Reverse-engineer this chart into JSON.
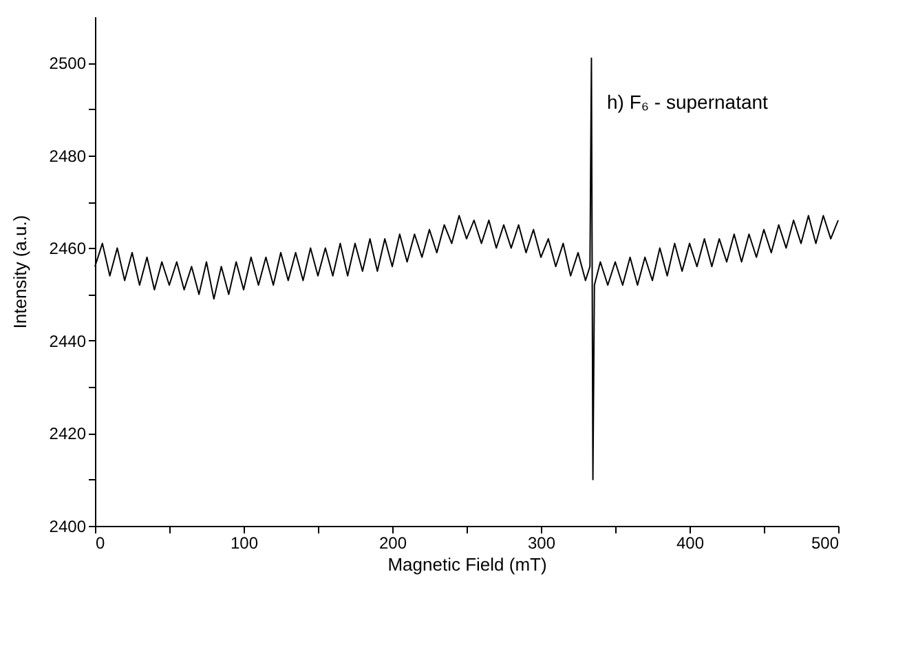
{
  "chart_data": {
    "type": "line",
    "xlabel": "Magnetic Field (mT)",
    "ylabel": "Intensity (a.u.)",
    "annotations": [
      "h) F₆ - supernatant"
    ],
    "xlim": [
      0,
      500
    ],
    "ylim": [
      2400,
      2510
    ],
    "xticks": [
      0,
      {
        "value": 50,
        "label": null
      },
      100,
      {
        "value": 150,
        "label": null
      },
      200,
      {
        "value": 250,
        "label": null
      },
      300,
      {
        "value": 350,
        "label": null
      },
      400,
      {
        "value": 450,
        "label": null
      },
      500
    ],
    "yticks": [
      2400,
      {
        "value": 2410,
        "label": null
      },
      2420,
      {
        "value": 2430,
        "label": null
      },
      2440,
      {
        "value": 2450,
        "label": null
      },
      2460,
      {
        "value": 2470,
        "label": null
      },
      2480,
      {
        "value": 2490,
        "label": null
      },
      2500
    ],
    "grid": false,
    "line_style": "solid",
    "series": [
      {
        "color": "#000000",
        "x": [
          0,
          5,
          10,
          15,
          20,
          25,
          30,
          35,
          40,
          45,
          50,
          55,
          60,
          65,
          70,
          75,
          80,
          85,
          90,
          95,
          100,
          105,
          110,
          115,
          120,
          125,
          130,
          135,
          140,
          145,
          150,
          155,
          160,
          165,
          170,
          175,
          180,
          185,
          190,
          195,
          200,
          205,
          210,
          215,
          220,
          225,
          230,
          235,
          240,
          245,
          250,
          255,
          260,
          265,
          270,
          275,
          280,
          285,
          290,
          295,
          300,
          305,
          310,
          315,
          320,
          325,
          330,
          333,
          334,
          335,
          336,
          340,
          345,
          350,
          355,
          360,
          365,
          370,
          375,
          380,
          385,
          390,
          395,
          400,
          405,
          410,
          415,
          420,
          425,
          430,
          435,
          440,
          445,
          450,
          455,
          460,
          465,
          470,
          475,
          480,
          485,
          490,
          495,
          500
        ],
        "values": [
          2456,
          2461,
          2454,
          2460,
          2453,
          2459,
          2452,
          2458,
          2451,
          2457,
          2452,
          2457,
          2451,
          2456,
          2450,
          2457,
          2449,
          2456,
          2450,
          2457,
          2451,
          2458,
          2452,
          2458,
          2452,
          2459,
          2453,
          2459,
          2453,
          2460,
          2454,
          2460,
          2454,
          2461,
          2454,
          2461,
          2455,
          2462,
          2455,
          2462,
          2456,
          2463,
          2457,
          2463,
          2458,
          2464,
          2459,
          2465,
          2461,
          2467,
          2462,
          2466,
          2461,
          2466,
          2460,
          2465,
          2460,
          2465,
          2459,
          2464,
          2458,
          2462,
          2456,
          2461,
          2454,
          2459,
          2453,
          2456,
          2501,
          2410,
          2452,
          2457,
          2452,
          2457,
          2452,
          2458,
          2452,
          2458,
          2453,
          2460,
          2454,
          2461,
          2455,
          2461,
          2456,
          2462,
          2456,
          2462,
          2457,
          2463,
          2457,
          2463,
          2458,
          2464,
          2459,
          2465,
          2460,
          2466,
          2461,
          2467,
          2461,
          2467,
          2462,
          2466
        ]
      }
    ]
  }
}
